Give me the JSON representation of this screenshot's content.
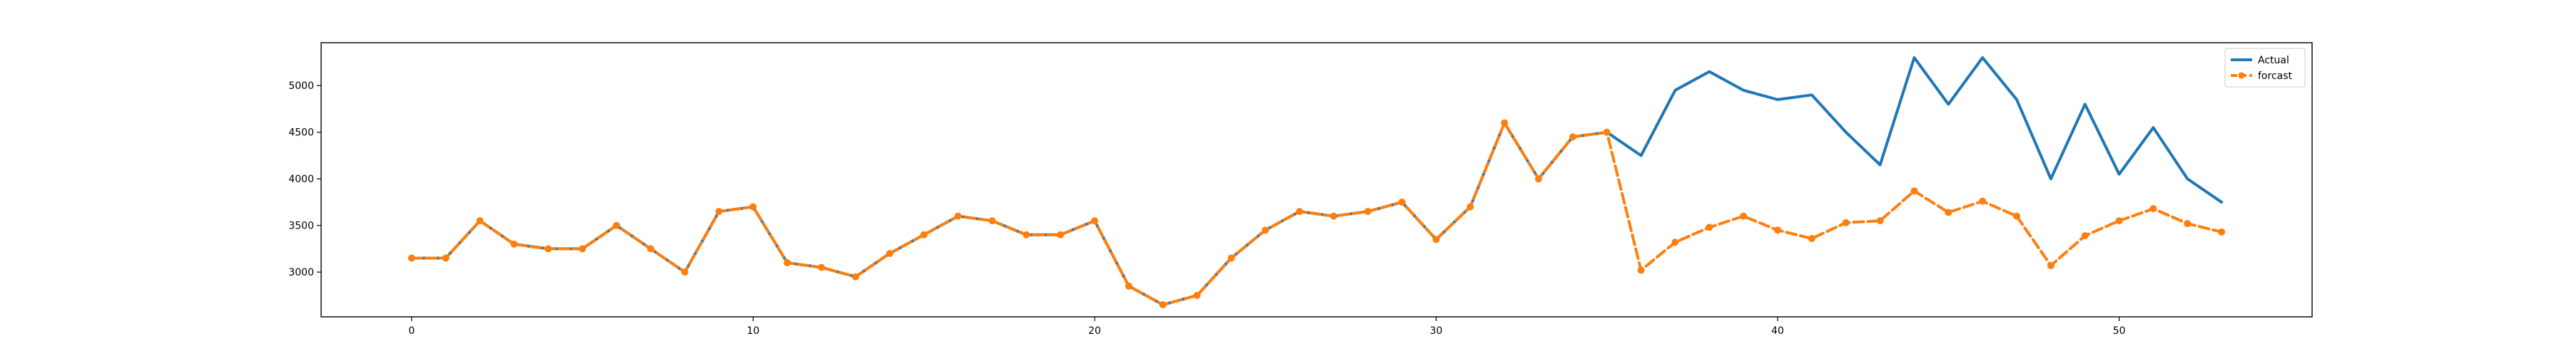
{
  "chart_data": {
    "type": "line",
    "title": "",
    "xlabel": "",
    "ylabel": "",
    "xlim": [
      -2.65,
      55.65
    ],
    "ylim": [
      2520,
      5460
    ],
    "xticks": [
      0,
      10,
      20,
      30,
      40,
      50
    ],
    "yticks": [
      3000,
      3500,
      4000,
      4500,
      5000
    ],
    "grid": false,
    "legend_position": "top-right",
    "series": [
      {
        "name": "Actual",
        "color": "#1f77b4",
        "style": "solid",
        "x": [
          0,
          1,
          2,
          3,
          4,
          5,
          6,
          7,
          8,
          9,
          10,
          11,
          12,
          13,
          14,
          15,
          16,
          17,
          18,
          19,
          20,
          21,
          22,
          23,
          24,
          25,
          26,
          27,
          28,
          29,
          30,
          31,
          32,
          33,
          34,
          35,
          36,
          37,
          38,
          39,
          40,
          41,
          42,
          43,
          44,
          45,
          46,
          47,
          48,
          49,
          50,
          51,
          52,
          53
        ],
        "y": [
          3150,
          3150,
          3550,
          3300,
          3250,
          3250,
          3500,
          3250,
          3000,
          3650,
          3700,
          3100,
          3050,
          2950,
          3200,
          3400,
          3600,
          3550,
          3400,
          3400,
          3550,
          2850,
          2650,
          2750,
          3150,
          3450,
          3650,
          3600,
          3650,
          3750,
          3350,
          3700,
          4600,
          4000,
          4450,
          4500,
          4250,
          4950,
          5150,
          4950,
          4850,
          4900,
          4500,
          4150,
          5300,
          4800,
          5300,
          4850,
          4000,
          4800,
          4050,
          4550,
          4000,
          3750
        ]
      },
      {
        "name": "forcast",
        "color": "#ff7f0e",
        "style": "dashed",
        "marker": "circle",
        "x": [
          0,
          1,
          2,
          3,
          4,
          5,
          6,
          7,
          8,
          9,
          10,
          11,
          12,
          13,
          14,
          15,
          16,
          17,
          18,
          19,
          20,
          21,
          22,
          23,
          24,
          25,
          26,
          27,
          28,
          29,
          30,
          31,
          32,
          33,
          34,
          35,
          36,
          37,
          38,
          39,
          40,
          41,
          42,
          43,
          44,
          45,
          46,
          47,
          48,
          49,
          50,
          51,
          52,
          53
        ],
        "y": [
          3150,
          3150,
          3550,
          3300,
          3250,
          3250,
          3500,
          3250,
          3000,
          3650,
          3700,
          3100,
          3050,
          2950,
          3200,
          3400,
          3600,
          3550,
          3400,
          3400,
          3550,
          2850,
          2650,
          2750,
          3150,
          3450,
          3650,
          3600,
          3650,
          3750,
          3350,
          3700,
          4600,
          4000,
          4450,
          4500,
          3020,
          3320,
          3480,
          3600,
          3450,
          3360,
          3530,
          3550,
          3870,
          3640,
          3760,
          3600,
          3070,
          3390,
          3550,
          3680,
          3520,
          3430
        ]
      }
    ]
  }
}
